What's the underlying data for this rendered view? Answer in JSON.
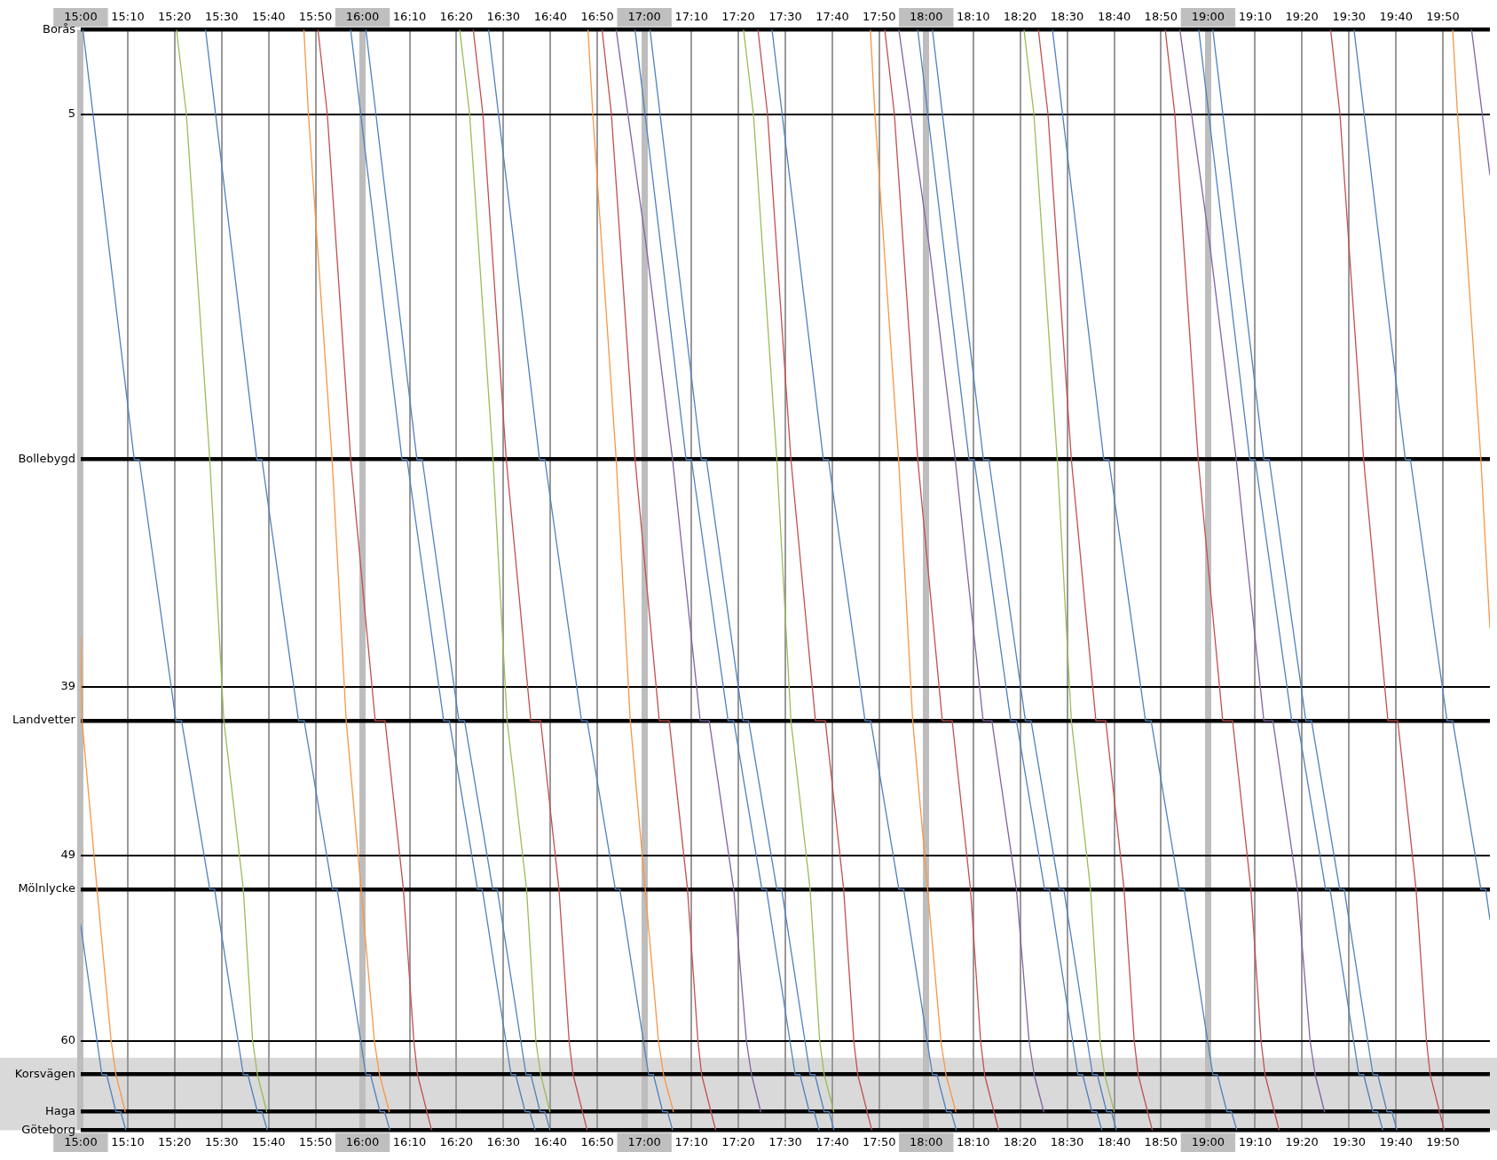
{
  "chart_data": {
    "type": "line",
    "marker": "none",
    "line_style": "solid",
    "legend": false,
    "grid": true,
    "xlim": [
      15,
      20
    ],
    "ylim": [
      65.3,
      0
    ],
    "xticks": [
      {
        "value": 15,
        "label": "15:00"
      },
      {
        "value": 15.167,
        "label": "15:10"
      },
      {
        "value": 15.333,
        "label": "15:20"
      },
      {
        "value": 15.5,
        "label": "15:30"
      },
      {
        "value": 15.667,
        "label": "15:40"
      },
      {
        "value": 15.833,
        "label": "15:50"
      },
      {
        "value": 16,
        "label": "16:00"
      },
      {
        "value": 16.167,
        "label": "16:10"
      },
      {
        "value": 16.333,
        "label": "16:20"
      },
      {
        "value": 16.5,
        "label": "16:30"
      },
      {
        "value": 16.667,
        "label": "16:40"
      },
      {
        "value": 16.833,
        "label": "16:50"
      },
      {
        "value": 17,
        "label": "17:00"
      },
      {
        "value": 17.167,
        "label": "17:10"
      },
      {
        "value": 17.333,
        "label": "17:20"
      },
      {
        "value": 17.5,
        "label": "17:30"
      },
      {
        "value": 17.667,
        "label": "17:40"
      },
      {
        "value": 17.833,
        "label": "17:50"
      },
      {
        "value": 18,
        "label": "18:00"
      },
      {
        "value": 18.167,
        "label": "18:10"
      },
      {
        "value": 18.333,
        "label": "18:20"
      },
      {
        "value": 18.5,
        "label": "18:30"
      },
      {
        "value": 18.667,
        "label": "18:40"
      },
      {
        "value": 18.833,
        "label": "18:50"
      },
      {
        "value": 19,
        "label": "19:00"
      },
      {
        "value": 19.167,
        "label": "19:10"
      },
      {
        "value": 19.333,
        "label": "19:20"
      },
      {
        "value": 19.5,
        "label": "19:30"
      },
      {
        "value": 19.667,
        "label": "19:40"
      },
      {
        "value": 19.833,
        "label": "19:50"
      }
    ],
    "x2lim": [
      15,
      20
    ],
    "x2ticks": [
      {
        "value": 15,
        "label": "15:00"
      },
      {
        "value": 15.167,
        "label": "15:10"
      },
      {
        "value": 15.333,
        "label": "15:20"
      },
      {
        "value": 15.5,
        "label": "15:30"
      },
      {
        "value": 15.667,
        "label": "15:40"
      },
      {
        "value": 15.833,
        "label": "15:50"
      },
      {
        "value": 16,
        "label": "16:00"
      },
      {
        "value": 16.167,
        "label": "16:10"
      },
      {
        "value": 16.333,
        "label": "16:20"
      },
      {
        "value": 16.5,
        "label": "16:30"
      },
      {
        "value": 16.667,
        "label": "16:40"
      },
      {
        "value": 16.833,
        "label": "16:50"
      },
      {
        "value": 17,
        "label": "17:00"
      },
      {
        "value": 17.167,
        "label": "17:10"
      },
      {
        "value": 17.333,
        "label": "17:20"
      },
      {
        "value": 17.5,
        "label": "17:30"
      },
      {
        "value": 17.667,
        "label": "17:40"
      },
      {
        "value": 17.833,
        "label": "17:50"
      },
      {
        "value": 18,
        "label": "18:00"
      },
      {
        "value": 18.167,
        "label": "18:10"
      },
      {
        "value": 18.333,
        "label": "18:20"
      },
      {
        "value": 18.5,
        "label": "18:30"
      },
      {
        "value": 18.667,
        "label": "18:40"
      },
      {
        "value": 18.833,
        "label": "18:50"
      },
      {
        "value": 19,
        "label": "19:00"
      },
      {
        "value": 19.167,
        "label": "19:10"
      },
      {
        "value": 19.333,
        "label": "19:20"
      },
      {
        "value": 19.5,
        "label": "19:30"
      },
      {
        "value": 19.667,
        "label": "19:40"
      },
      {
        "value": 19.833,
        "label": "19:50"
      }
    ],
    "yticks": [
      {
        "value": 0,
        "label": "Borås"
      },
      5,
      {
        "value": 25.5,
        "label": "Bollebygd"
      },
      39,
      {
        "value": 41,
        "label": "Landvetter"
      },
      49,
      {
        "value": 51,
        "label": "Mölnlycke"
      },
      60,
      {
        "value": 62,
        "label": "Korsvägen"
      },
      {
        "value": 64.2,
        "label": "Haga"
      },
      {
        "value": 65.3,
        "label": "Göteborg"
      }
    ],
    "bands": [
      {
        "axis": "y",
        "from": 61,
        "to": 65.3,
        "color": "#d9d9d9"
      }
    ],
    "series": [
      {
        "color": "#4f81bd",
        "x": [
          15,
          15.075,
          15.092,
          15.125,
          15.142,
          15.16
        ],
        "values": [
          53.1,
          62,
          62,
          64.2,
          64.2,
          65.3
        ]
      },
      {
        "color": "#f79646",
        "x": [
          15,
          15.005,
          15.058,
          15.108,
          15.125,
          15.158
        ],
        "values": [
          36,
          41,
          51,
          60,
          62,
          64.2
        ]
      },
      {
        "color": "#4f81bd",
        "x": [
          15.008,
          15.19,
          15.208,
          15.338,
          15.358,
          15.458,
          15.475,
          15.577,
          15.593,
          15.627,
          15.643,
          15.662
        ],
        "values": [
          0,
          25.5,
          25.5,
          41,
          41,
          51,
          51,
          62,
          62,
          64.2,
          64.2,
          65.3
        ]
      },
      {
        "color": "#9bbb59",
        "x": [
          15.34,
          15.375,
          15.458,
          15.508,
          15.577,
          15.61,
          15.627,
          15.66
        ],
        "values": [
          0,
          5,
          25.5,
          41,
          51,
          60,
          62,
          64.2
        ]
      },
      {
        "color": "#4f81bd",
        "x": [
          15.443,
          15.625,
          15.643,
          15.773,
          15.793,
          15.893,
          15.91,
          16.012,
          16.028,
          16.062,
          16.078,
          16.097
        ],
        "values": [
          0,
          25.5,
          25.5,
          41,
          41,
          51,
          51,
          62,
          62,
          64.2,
          64.2,
          65.3
        ]
      },
      {
        "color": "#f79646",
        "x": [
          15.792,
          15.808,
          15.892,
          15.942,
          15.995,
          16.042,
          16.06,
          16.095
        ],
        "values": [
          0,
          5,
          25.5,
          41,
          51,
          60,
          62,
          64.2
        ]
      },
      {
        "color": "#c0504d",
        "x": [
          15.842,
          15.875,
          15.958,
          16.045,
          16.08,
          16.145,
          16.182,
          16.195,
          16.245
        ],
        "values": [
          0,
          5,
          25.5,
          41,
          41,
          51,
          60,
          62,
          65.3
        ]
      },
      {
        "color": "#4f81bd",
        "x": [
          15.958,
          16.14,
          16.158,
          16.288,
          16.308,
          16.408,
          16.425,
          16.527,
          16.543,
          16.577,
          16.593,
          16.612
        ],
        "values": [
          0,
          25.5,
          25.5,
          41,
          41,
          51,
          51,
          62,
          62,
          64.2,
          64.2,
          65.3
        ]
      },
      {
        "color": "#4f81bd",
        "x": [
          16.012,
          16.193,
          16.212,
          16.342,
          16.362,
          16.462,
          16.478,
          16.58,
          16.597,
          16.63,
          16.647,
          16.665
        ],
        "values": [
          0,
          25.5,
          25.5,
          41,
          41,
          51,
          51,
          62,
          62,
          64.2,
          64.2,
          65.3
        ]
      },
      {
        "color": "#9bbb59",
        "x": [
          16.345,
          16.38,
          16.463,
          16.513,
          16.582,
          16.615,
          16.632,
          16.665
        ],
        "values": [
          0,
          5,
          25.5,
          41,
          51,
          60,
          62,
          64.2
        ]
      },
      {
        "color": "#c0504d",
        "x": [
          16.393,
          16.427,
          16.51,
          16.597,
          16.632,
          16.697,
          16.733,
          16.747,
          16.797
        ],
        "values": [
          0,
          5,
          25.5,
          41,
          41,
          51,
          60,
          62,
          65.3
        ]
      },
      {
        "color": "#4f81bd",
        "x": [
          16.447,
          16.628,
          16.647,
          16.777,
          16.797,
          16.897,
          16.913,
          17.015,
          17.032,
          17.065,
          17.082,
          17.1
        ],
        "values": [
          0,
          25.5,
          25.5,
          41,
          41,
          51,
          51,
          62,
          62,
          64.2,
          64.2,
          65.3
        ]
      },
      {
        "color": "#f79646",
        "x": [
          16.8,
          16.817,
          16.9,
          16.95,
          17.003,
          17.05,
          17.068,
          17.103
        ],
        "values": [
          0,
          5,
          25.5,
          41,
          51,
          60,
          62,
          64.2
        ]
      },
      {
        "color": "#c0504d",
        "x": [
          16.85,
          16.883,
          16.967,
          17.053,
          17.088,
          17.153,
          17.19,
          17.203,
          17.253
        ],
        "values": [
          0,
          5,
          25.5,
          41,
          41,
          51,
          60,
          62,
          65.3
        ]
      },
      {
        "color": "#8064a2",
        "x": [
          16.9,
          17.008,
          17.1,
          17.198,
          17.23,
          17.317,
          17.362,
          17.38,
          17.413
        ],
        "values": [
          0,
          13,
          25.5,
          41,
          41,
          51,
          60,
          62,
          64.2
        ]
      },
      {
        "color": "#4f81bd",
        "x": [
          16.967,
          17.148,
          17.167,
          17.297,
          17.317,
          17.417,
          17.433,
          17.535,
          17.552,
          17.585,
          17.602,
          17.62
        ],
        "values": [
          0,
          25.5,
          25.5,
          41,
          41,
          51,
          51,
          62,
          62,
          64.2,
          64.2,
          65.3
        ]
      },
      {
        "color": "#4f81bd",
        "x": [
          17.02,
          17.202,
          17.22,
          17.35,
          17.37,
          17.47,
          17.487,
          17.588,
          17.605,
          17.638,
          17.655,
          17.673
        ],
        "values": [
          0,
          25.5,
          25.5,
          41,
          41,
          51,
          51,
          62,
          62,
          64.2,
          64.2,
          65.3
        ]
      },
      {
        "color": "#9bbb59",
        "x": [
          17.352,
          17.387,
          17.47,
          17.52,
          17.588,
          17.622,
          17.638,
          17.672
        ],
        "values": [
          0,
          5,
          25.5,
          41,
          51,
          60,
          62,
          64.2
        ]
      },
      {
        "color": "#c0504d",
        "x": [
          17.403,
          17.437,
          17.52,
          17.607,
          17.642,
          17.707,
          17.743,
          17.757,
          17.807
        ],
        "values": [
          0,
          5,
          25.5,
          41,
          41,
          51,
          60,
          62,
          65.3
        ]
      },
      {
        "color": "#4f81bd",
        "x": [
          17.453,
          17.635,
          17.653,
          17.783,
          17.803,
          17.903,
          17.92,
          18.022,
          18.038,
          18.072,
          18.088,
          18.107
        ],
        "values": [
          0,
          25.5,
          25.5,
          41,
          41,
          51,
          51,
          62,
          62,
          64.2,
          64.2,
          65.3
        ]
      },
      {
        "color": "#f79646",
        "x": [
          17.802,
          17.818,
          17.902,
          17.952,
          18.005,
          18.052,
          18.07,
          18.105
        ],
        "values": [
          0,
          5,
          25.5,
          41,
          51,
          60,
          62,
          64.2
        ]
      },
      {
        "color": "#c0504d",
        "x": [
          17.853,
          17.887,
          17.97,
          18.057,
          18.092,
          18.157,
          18.193,
          18.207,
          18.257
        ],
        "values": [
          0,
          5,
          25.5,
          41,
          41,
          51,
          60,
          62,
          65.3
        ]
      },
      {
        "color": "#8064a2",
        "x": [
          17.903,
          18.012,
          18.103,
          18.202,
          18.233,
          18.32,
          18.365,
          18.383,
          18.417
        ],
        "values": [
          0,
          13,
          25.5,
          41,
          41,
          51,
          60,
          62,
          64.2
        ]
      },
      {
        "color": "#4f81bd",
        "x": [
          17.97,
          18.152,
          18.17,
          18.3,
          18.32,
          18.42,
          18.437,
          18.538,
          18.555,
          18.588,
          18.605,
          18.623
        ],
        "values": [
          0,
          25.5,
          25.5,
          41,
          41,
          51,
          51,
          62,
          62,
          64.2,
          64.2,
          65.3
        ]
      },
      {
        "color": "#4f81bd",
        "x": [
          18.022,
          18.203,
          18.222,
          18.352,
          18.372,
          18.472,
          18.488,
          18.59,
          18.607,
          18.64,
          18.657,
          18.675
        ],
        "values": [
          0,
          25.5,
          25.5,
          41,
          41,
          51,
          51,
          62,
          62,
          64.2,
          64.2,
          65.3
        ]
      },
      {
        "color": "#9bbb59",
        "x": [
          18.347,
          18.382,
          18.465,
          18.515,
          18.583,
          18.617,
          18.633,
          18.667
        ],
        "values": [
          0,
          5,
          25.5,
          41,
          51,
          60,
          62,
          64.2
        ]
      },
      {
        "color": "#c0504d",
        "x": [
          18.398,
          18.432,
          18.515,
          18.602,
          18.637,
          18.702,
          18.738,
          18.752,
          18.802
        ],
        "values": [
          0,
          5,
          25.5,
          41,
          41,
          51,
          60,
          62,
          65.3
        ]
      },
      {
        "color": "#4f81bd",
        "x": [
          18.448,
          18.63,
          18.648,
          18.778,
          18.798,
          18.898,
          18.915,
          19.017,
          19.033,
          19.067,
          19.083,
          19.102
        ],
        "values": [
          0,
          25.5,
          25.5,
          41,
          41,
          51,
          51,
          62,
          62,
          64.2,
          64.2,
          65.3
        ]
      },
      {
        "color": "#c0504d",
        "x": [
          18.848,
          18.882,
          18.965,
          19.052,
          19.087,
          19.152,
          19.188,
          19.202,
          19.252
        ],
        "values": [
          0,
          5,
          25.5,
          41,
          41,
          51,
          60,
          62,
          65.3
        ]
      },
      {
        "color": "#8064a2",
        "x": [
          18.9,
          19.008,
          19.1,
          19.198,
          19.23,
          19.317,
          19.362,
          19.38,
          19.413
        ],
        "values": [
          0,
          13,
          25.5,
          41,
          41,
          51,
          60,
          62,
          64.2
        ]
      },
      {
        "color": "#4f81bd",
        "x": [
          18.967,
          19.148,
          19.167,
          19.297,
          19.317,
          19.417,
          19.433,
          19.535,
          19.552,
          19.585,
          19.602,
          19.62
        ],
        "values": [
          0,
          25.5,
          25.5,
          41,
          41,
          51,
          51,
          62,
          62,
          64.2,
          64.2,
          65.3
        ]
      },
      {
        "color": "#4f81bd",
        "x": [
          19.017,
          19.198,
          19.217,
          19.347,
          19.367,
          19.467,
          19.483,
          19.585,
          19.602,
          19.635,
          19.652,
          19.67
        ],
        "values": [
          0,
          25.5,
          25.5,
          41,
          41,
          51,
          51,
          62,
          62,
          64.2,
          64.2,
          65.3
        ]
      },
      {
        "color": "#c0504d",
        "x": [
          19.435,
          19.468,
          19.552,
          19.638,
          19.673,
          19.738,
          19.775,
          19.788,
          19.838
        ],
        "values": [
          0,
          5,
          25.5,
          41,
          41,
          51,
          60,
          62,
          65.3
        ]
      },
      {
        "color": "#4f81bd",
        "x": [
          19.518,
          19.7,
          19.718,
          19.848,
          19.868,
          19.968,
          19.985,
          20
        ],
        "values": [
          0,
          25.5,
          25.5,
          41,
          41,
          51,
          51,
          52.8
        ]
      },
      {
        "color": "#f79646",
        "x": [
          19.868,
          19.885,
          19.968,
          20
        ],
        "values": [
          0,
          5,
          25.5,
          35.5
        ]
      },
      {
        "color": "#8064a2",
        "x": [
          19.935,
          20
        ],
        "values": [
          0,
          8.6
        ]
      }
    ]
  }
}
